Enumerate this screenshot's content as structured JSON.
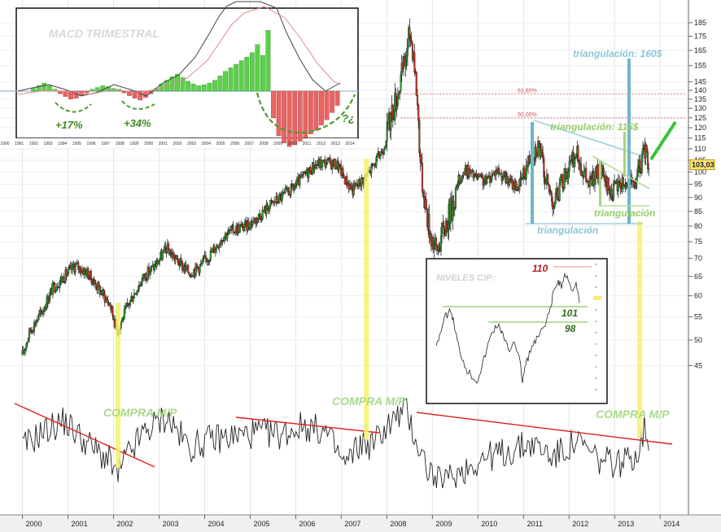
{
  "chart_data": [
    {
      "type": "candlestick",
      "x_axis": {
        "ticks": [
          "2000",
          "2001",
          "2002",
          "2003",
          "2004",
          "2005",
          "2006",
          "2007",
          "2008",
          "2009",
          "2010",
          "2011",
          "2012",
          "2013",
          "2014"
        ]
      },
      "y_axis": {
        "scale": "log",
        "ticks": [
          45,
          50,
          55,
          60,
          65,
          70,
          75,
          80,
          85,
          90,
          95,
          100,
          105,
          110,
          115,
          120,
          125,
          130,
          135,
          140,
          145,
          155,
          165,
          175,
          185
        ],
        "range": [
          42,
          190
        ]
      },
      "last_price": "103,03",
      "price_path": [
        [
          "2000-01",
          47
        ],
        [
          "2000-03",
          52
        ],
        [
          "2000-06",
          56
        ],
        [
          "2000-09",
          62
        ],
        [
          "2000-12",
          65
        ],
        [
          "2001-03",
          68
        ],
        [
          "2001-06",
          66
        ],
        [
          "2001-09",
          62
        ],
        [
          "2001-12",
          58
        ],
        [
          "2002-02",
          52
        ],
        [
          "2002-04",
          56
        ],
        [
          "2002-06",
          60
        ],
        [
          "2002-09",
          65
        ],
        [
          "2002-12",
          68
        ],
        [
          "2003-03",
          73
        ],
        [
          "2003-06",
          69
        ],
        [
          "2003-09",
          66
        ],
        [
          "2003-12",
          68
        ],
        [
          "2004-03",
          72
        ],
        [
          "2004-06",
          77
        ],
        [
          "2004-09",
          79
        ],
        [
          "2004-12",
          80
        ],
        [
          "2005-03",
          83
        ],
        [
          "2005-06",
          87
        ],
        [
          "2005-09",
          90
        ],
        [
          "2005-12",
          93
        ],
        [
          "2006-03",
          98
        ],
        [
          "2006-06",
          103
        ],
        [
          "2006-09",
          104
        ],
        [
          "2006-12",
          103
        ],
        [
          "2007-02",
          97
        ],
        [
          "2007-04",
          93
        ],
        [
          "2007-06",
          96
        ],
        [
          "2007-08",
          99
        ],
        [
          "2007-10",
          104
        ],
        [
          "2007-12",
          110
        ],
        [
          "2008-02",
          125
        ],
        [
          "2008-04",
          140
        ],
        [
          "2008-06",
          160
        ],
        [
          "2008-07",
          178
        ],
        [
          "2008-08",
          165
        ],
        [
          "2008-09",
          135
        ],
        [
          "2008-10",
          100
        ],
        [
          "2008-12",
          80
        ],
        [
          "2009-02",
          72
        ],
        [
          "2009-04",
          79
        ],
        [
          "2009-06",
          86
        ],
        [
          "2009-08",
          97
        ],
        [
          "2009-10",
          101
        ],
        [
          "2009-12",
          98
        ],
        [
          "2010-03",
          96
        ],
        [
          "2010-06",
          101
        ],
        [
          "2010-09",
          96
        ],
        [
          "2010-12",
          94
        ],
        [
          "2011-01",
          99
        ],
        [
          "2011-03",
          108
        ],
        [
          "2011-05",
          112
        ],
        [
          "2011-07",
          96
        ],
        [
          "2011-09",
          88
        ],
        [
          "2011-12",
          99
        ],
        [
          "2012-03",
          108
        ],
        [
          "2012-06",
          95
        ],
        [
          "2012-09",
          100
        ],
        [
          "2012-12",
          92
        ],
        [
          "2013-03",
          96
        ],
        [
          "2013-06",
          94
        ],
        [
          "2013-08",
          104
        ],
        [
          "2013-09",
          110
        ],
        [
          "2013-10",
          103
        ]
      ],
      "oscillator_path": [
        [
          "2000-01",
          0.45
        ],
        [
          "2000-06",
          0.62
        ],
        [
          "2000-12",
          0.75
        ],
        [
          "2001-06",
          0.5
        ],
        [
          "2001-12",
          0.3
        ],
        [
          "2002-02",
          0.12
        ],
        [
          "2002-04",
          0.32
        ],
        [
          "2002-09",
          0.62
        ],
        [
          "2003-03",
          0.8
        ],
        [
          "2003-09",
          0.45
        ],
        [
          "2004-03",
          0.55
        ],
        [
          "2004-09",
          0.58
        ],
        [
          "2005-03",
          0.62
        ],
        [
          "2005-09",
          0.6
        ],
        [
          "2006-03",
          0.7
        ],
        [
          "2006-09",
          0.62
        ],
        [
          "2007-02",
          0.25
        ],
        [
          "2007-06",
          0.5
        ],
        [
          "2007-09",
          0.48
        ],
        [
          "2007-12",
          0.65
        ],
        [
          "2008-06",
          0.88
        ],
        [
          "2008-09",
          0.5
        ],
        [
          "2008-12",
          0.2
        ],
        [
          "2009-03",
          0.05
        ],
        [
          "2009-09",
          0.2
        ],
        [
          "2010-03",
          0.35
        ],
        [
          "2010-09",
          0.4
        ],
        [
          "2011-03",
          0.5
        ],
        [
          "2011-09",
          0.35
        ],
        [
          "2012-03",
          0.52
        ],
        [
          "2012-09",
          0.3
        ],
        [
          "2013-03",
          0.28
        ],
        [
          "2013-07",
          0.4
        ],
        [
          "2013-09",
          0.7
        ],
        [
          "2013-10",
          0.55
        ]
      ],
      "annotations": {
        "buy_signal": "COMPRA M/P",
        "triangle_blue": "triangulación",
        "triangle_green": "triangulación",
        "target_green": "triangulación: 115$",
        "target_blue": "triangulación: 160$",
        "fib_618": "61,80%",
        "fib_50": "50,00%"
      }
    },
    {
      "type": "bar",
      "title": "MACD TRIMESTRAL",
      "x_axis": {
        "ticks": [
          "1990",
          "1991",
          "1992",
          "1993",
          "1994",
          "1995",
          "1996",
          "1997",
          "1998",
          "1999",
          "2000",
          "2001",
          "2002",
          "2003",
          "2004",
          "2005",
          "2006",
          "2007",
          "2008",
          "2009",
          "2010",
          "2011",
          "2012",
          "2013",
          "2014"
        ]
      },
      "histogram": [
        0.3,
        0.6,
        0.9,
        0.6,
        0.2,
        -0.3,
        -0.6,
        -0.9,
        -0.8,
        -0.5,
        -0.2,
        0.2,
        0.4,
        0.6,
        0.5,
        0.3,
        0.2,
        -0.2,
        -0.5,
        -0.8,
        -1.0,
        -0.7,
        -0.3,
        0.3,
        0.8,
        1.2,
        1.6,
        1.9,
        1.5,
        1.1,
        0.8,
        0.6,
        0.7,
        0.9,
        1.2,
        1.7,
        2.2,
        2.6,
        3.0,
        3.4,
        3.8,
        4.3,
        5.2,
        4.0,
        6.8,
        -3.0,
        -5.0,
        -5.8,
        -6.2,
        -6.0,
        -5.6,
        -5.2,
        -4.8,
        -4.4,
        -3.8,
        -3.2,
        -2.4,
        -1.6
      ],
      "annotations": {
        "gain_1": "+17%",
        "gain_2": "+34%",
        "projection": "?¿"
      }
    },
    {
      "type": "line",
      "title": "NIVELES CIP:",
      "levels": [
        110,
        101,
        98
      ]
    }
  ]
}
